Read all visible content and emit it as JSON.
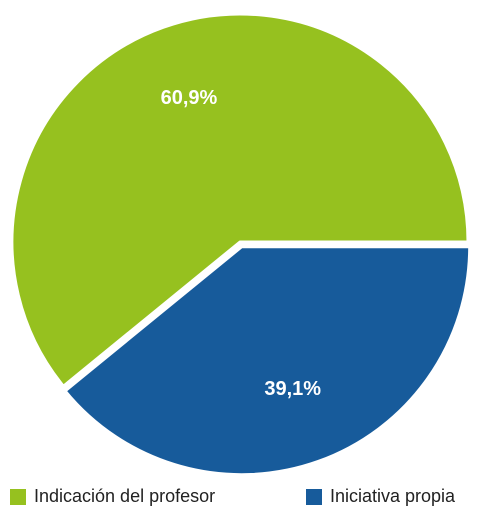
{
  "chart_data": {
    "type": "pie",
    "categories": [
      "Indicación del profesor",
      "Iniciativa propia"
    ],
    "values": [
      60.9,
      39.1
    ],
    "labels": [
      "60,9%",
      "39,1%"
    ],
    "colors": [
      "#96c11f",
      "#175b9b"
    ],
    "exploded": "Iniciativa propia",
    "legend_position": "bottom"
  },
  "legend": {
    "items": [
      {
        "label": "Indicación del profesor"
      },
      {
        "label": "Iniciativa propia"
      }
    ]
  }
}
